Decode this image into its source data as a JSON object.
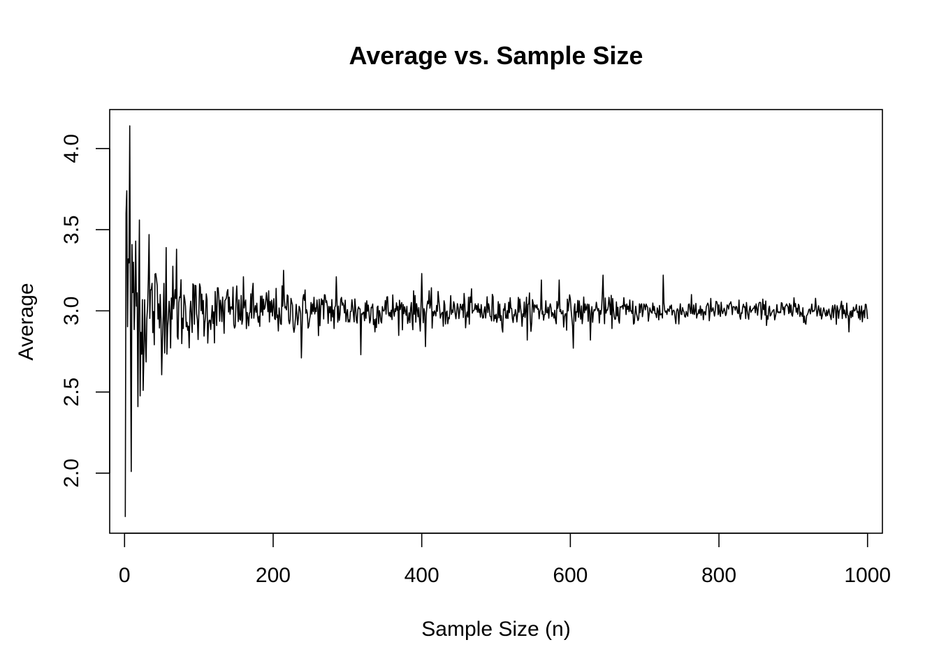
{
  "chart_data": {
    "type": "line",
    "title": "Average vs. Sample Size",
    "xlabel": "Sample Size (n)",
    "ylabel": "Average",
    "xlim": [
      -20,
      1020
    ],
    "ylim": [
      1.63,
      4.24
    ],
    "x_ticks": [
      0,
      200,
      400,
      600,
      800,
      1000
    ],
    "x_tick_labels": [
      "0",
      "200",
      "400",
      "600",
      "800",
      "1000"
    ],
    "y_ticks": [
      2.0,
      2.5,
      3.0,
      3.5,
      4.0
    ],
    "y_tick_labels": [
      "2.0",
      "2.5",
      "3.0",
      "3.5",
      "4.0"
    ],
    "grid": false,
    "series_color": "#000000",
    "n_points": 1000,
    "anchor_points": [
      {
        "x": 1,
        "y": 1.73
      },
      {
        "x": 2,
        "y": 3.6
      },
      {
        "x": 3,
        "y": 3.74
      },
      {
        "x": 5,
        "y": 3.32
      },
      {
        "x": 7,
        "y": 4.14
      },
      {
        "x": 9,
        "y": 2.01
      },
      {
        "x": 12,
        "y": 3.3
      },
      {
        "x": 15,
        "y": 3.43
      },
      {
        "x": 18,
        "y": 2.41
      },
      {
        "x": 20,
        "y": 3.56
      },
      {
        "x": 25,
        "y": 2.51
      },
      {
        "x": 33,
        "y": 3.47
      },
      {
        "x": 56,
        "y": 3.39
      },
      {
        "x": 70,
        "y": 3.38
      },
      {
        "x": 214,
        "y": 3.25
      },
      {
        "x": 238,
        "y": 2.71
      },
      {
        "x": 285,
        "y": 3.21
      },
      {
        "x": 318,
        "y": 2.73
      },
      {
        "x": 400,
        "y": 3.23
      },
      {
        "x": 405,
        "y": 2.78
      },
      {
        "x": 542,
        "y": 2.82
      },
      {
        "x": 561,
        "y": 3.19
      },
      {
        "x": 585,
        "y": 3.19
      },
      {
        "x": 604,
        "y": 2.77
      },
      {
        "x": 627,
        "y": 2.82
      },
      {
        "x": 644,
        "y": 3.22
      },
      {
        "x": 725,
        "y": 3.22
      },
      {
        "x": 975,
        "y": 2.87
      },
      {
        "x": 1000,
        "y": 2.95
      }
    ],
    "noise_envelope": [
      {
        "x": 0,
        "amplitude": 0.55
      },
      {
        "x": 50,
        "amplitude": 0.25
      },
      {
        "x": 100,
        "amplitude": 0.17
      },
      {
        "x": 200,
        "amplitude": 0.12
      },
      {
        "x": 400,
        "amplitude": 0.09
      },
      {
        "x": 600,
        "amplitude": 0.075
      },
      {
        "x": 800,
        "amplitude": 0.06
      },
      {
        "x": 1000,
        "amplitude": 0.05
      }
    ],
    "center_value": 3.0
  }
}
